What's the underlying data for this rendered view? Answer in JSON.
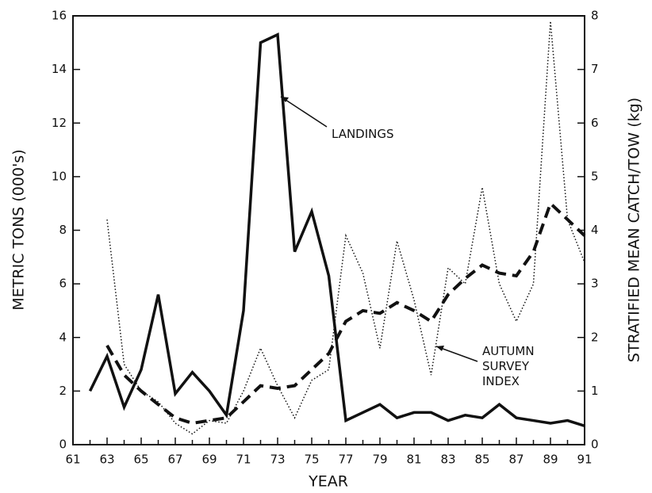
{
  "chart_data": {
    "type": "line",
    "xlabel": "YEAR",
    "ylabel": "METRIC TONS (000's)",
    "y2label": "STRATIFIED MEAN CATCH/TOW (kg)",
    "x": [
      61,
      62,
      63,
      64,
      65,
      66,
      67,
      68,
      69,
      70,
      71,
      72,
      73,
      74,
      75,
      76,
      77,
      78,
      79,
      80,
      81,
      82,
      83,
      84,
      85,
      86,
      87,
      88,
      89,
      90,
      91
    ],
    "series": [
      {
        "name": "LANDINGS",
        "color": "#111111",
        "style": "solid",
        "values": [
          null,
          2.0,
          3.3,
          1.4,
          2.8,
          5.6,
          1.9,
          2.7,
          2.0,
          1.1,
          5.0,
          15.0,
          15.3,
          7.2,
          8.7,
          6.3,
          0.9,
          1.2,
          1.5,
          1.0,
          1.2,
          1.2,
          0.9,
          1.1,
          1.0,
          1.5,
          1.0,
          0.9,
          0.8,
          0.9,
          0.7
        ]
      },
      {
        "name": "AUTUMN SURVEY INDEX",
        "color": "#111111",
        "style": "dashed",
        "axis": "y2",
        "values": [
          null,
          null,
          1.85,
          1.3,
          1.0,
          0.75,
          0.5,
          0.4,
          0.45,
          0.5,
          0.8,
          1.1,
          1.05,
          1.1,
          1.4,
          1.7,
          2.3,
          2.5,
          2.45,
          2.65,
          2.5,
          2.3,
          2.8,
          3.1,
          3.35,
          3.2,
          3.15,
          3.6,
          4.5,
          4.2,
          3.9
        ]
      },
      {
        "color": "#111111",
        "style": "dotted",
        "axis": "y2",
        "values": [
          null,
          null,
          4.2,
          1.5,
          1.0,
          0.8,
          0.4,
          0.2,
          0.45,
          0.4,
          1.0,
          1.8,
          1.1,
          0.5,
          1.2,
          1.4,
          3.9,
          3.2,
          1.8,
          3.8,
          2.7,
          1.3,
          3.3,
          3.0,
          4.8,
          3.0,
          2.3,
          3.0,
          7.9,
          4.2,
          3.4
        ]
      }
    ],
    "xlim": [
      61,
      91
    ],
    "xticks": [
      61,
      63,
      65,
      67,
      69,
      71,
      73,
      75,
      77,
      79,
      81,
      83,
      85,
      87,
      89,
      91
    ],
    "ylim": [
      0,
      16
    ],
    "yticks": [
      0,
      2,
      4,
      6,
      8,
      10,
      12,
      14,
      16
    ],
    "y2lim": [
      0,
      8
    ],
    "y2ticks": [
      0,
      1,
      2,
      3,
      4,
      5,
      6,
      7,
      8
    ]
  }
}
